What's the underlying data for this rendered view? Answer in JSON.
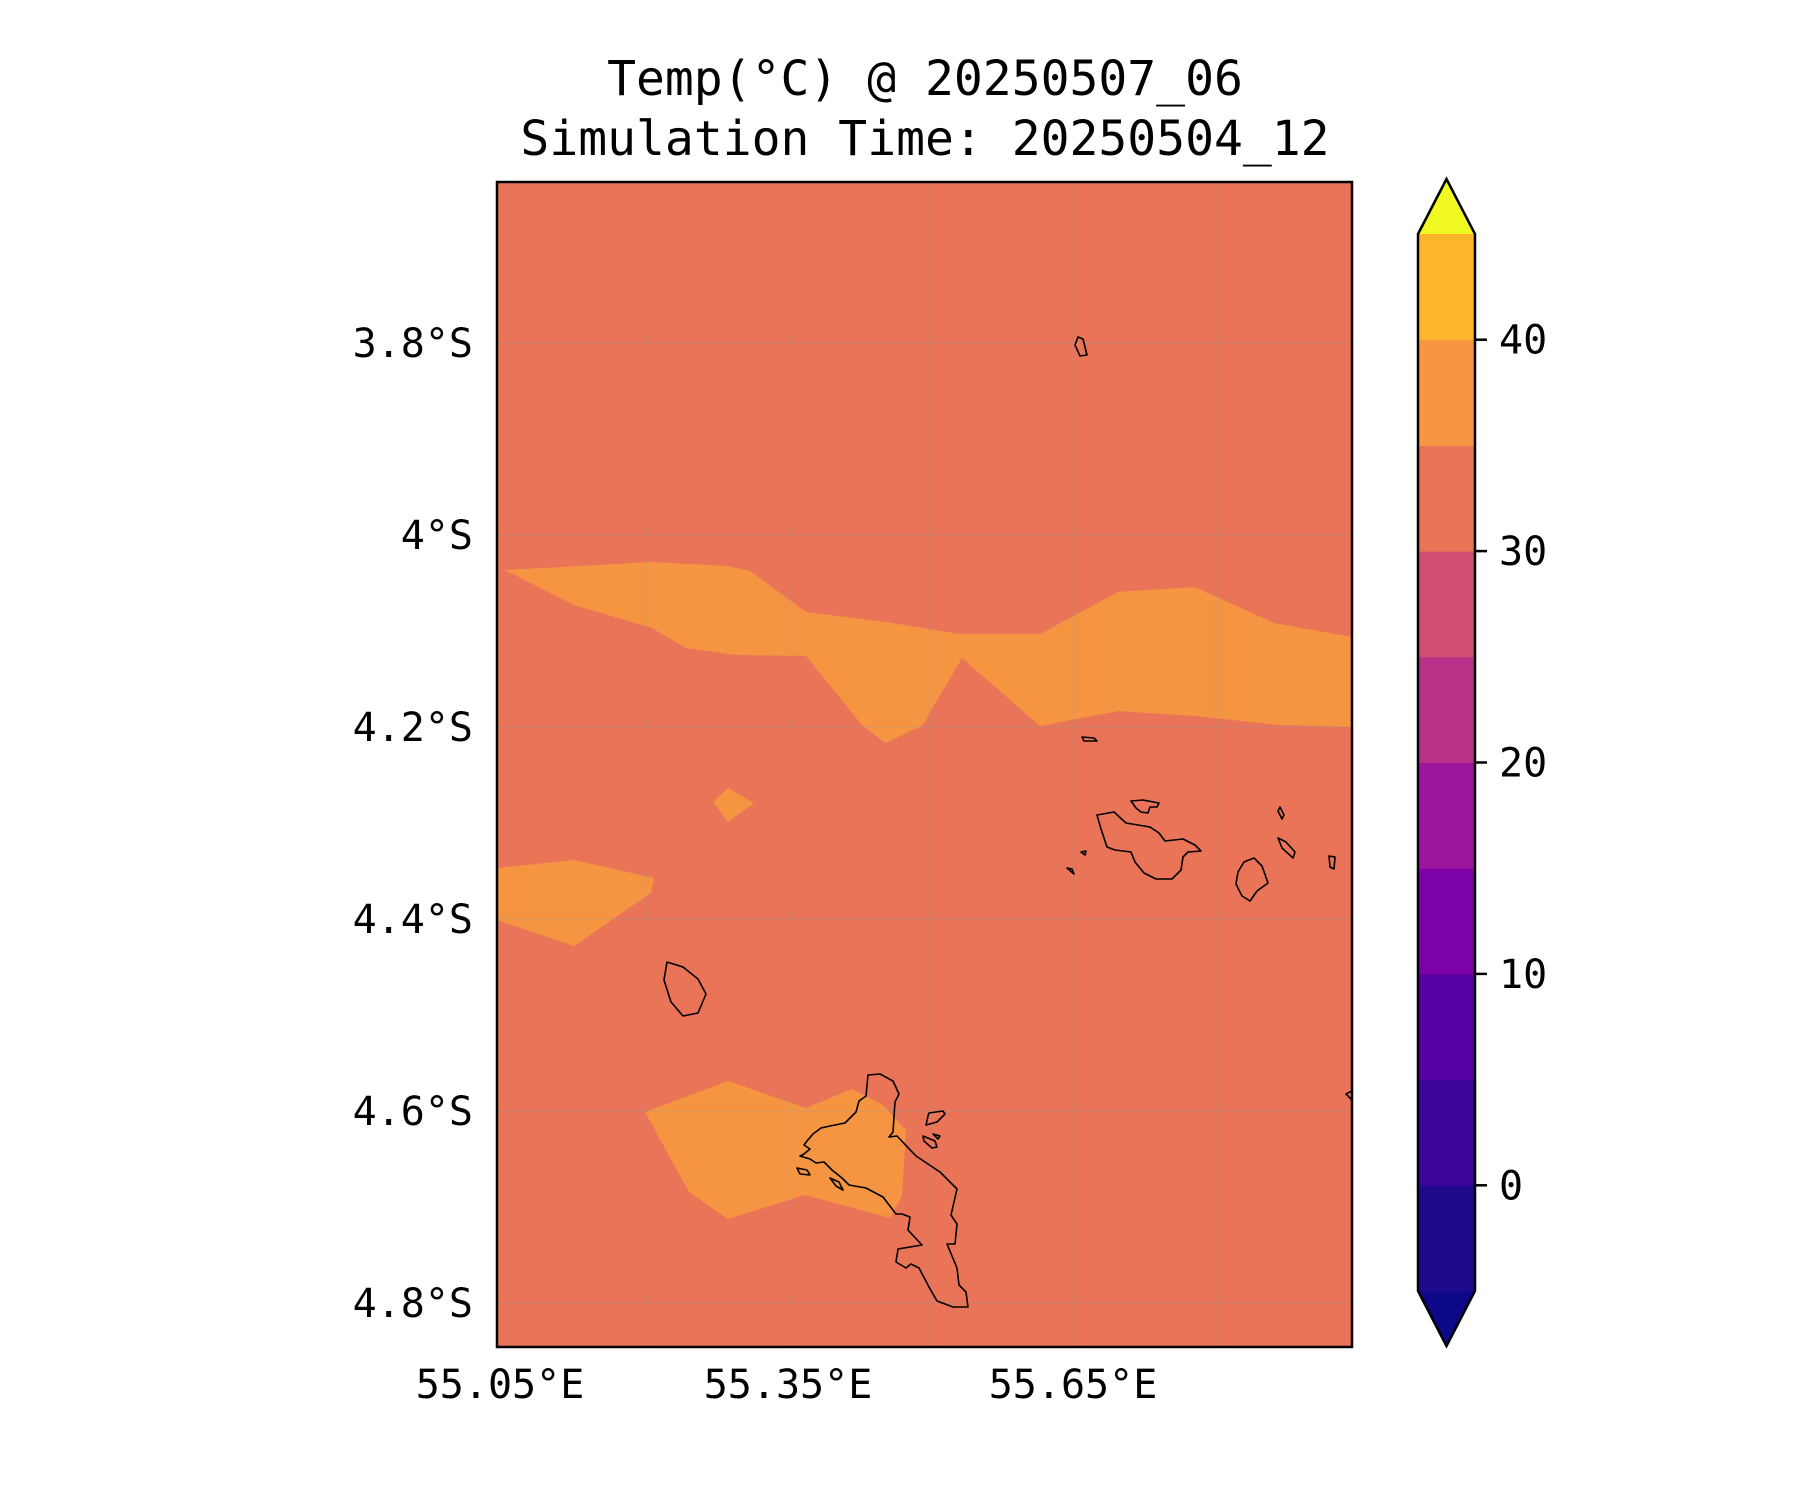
{
  "title": {
    "line1": "Temp(°C) @ 20250507_06",
    "line2": "Simulation Time: 20250504_12"
  },
  "map": {
    "background_color": "#e97458",
    "warm_band_color": "#f59542",
    "lat_ticks": [
      "3.8°S",
      "4°S",
      "4.2°S",
      "4.4°S",
      "4.6°S",
      "4.8°S"
    ],
    "lon_ticks": [
      "55.05°E",
      "55.35°E",
      "55.65°E"
    ],
    "coastline_color": "#000000"
  },
  "colorbar": {
    "levels": [
      -5,
      0,
      5,
      10,
      15,
      20,
      25,
      30,
      35,
      40,
      45
    ],
    "colors": [
      "#1f0a8c",
      "#3d049b",
      "#5801a4",
      "#7c02a8",
      "#9c179e",
      "#b93289",
      "#d24e71",
      "#e97458",
      "#f89540",
      "#fdb52e",
      "#f0e727"
    ],
    "under_color": "#0d0887",
    "over_color": "#f0f921",
    "tick_labels": [
      "0",
      "10",
      "20",
      "30",
      "40"
    ],
    "tick_values": [
      0,
      10,
      20,
      30,
      40
    ]
  }
}
